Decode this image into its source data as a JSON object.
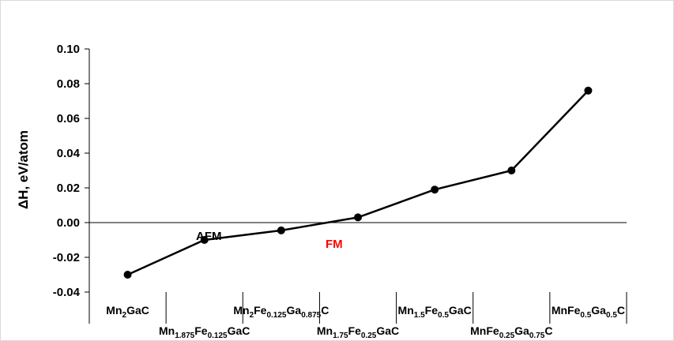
{
  "chart_data": {
    "type": "line",
    "ylabel": "ΔH, eV/atom",
    "ylim": [
      -0.04,
      0.1
    ],
    "yticks": [
      "0.10",
      "0.08",
      "0.06",
      "0.04",
      "0.02",
      "0.00",
      "-0.02",
      "-0.04"
    ],
    "grid": false,
    "categories": [
      {
        "parts": [
          [
            "Mn",
            ""
          ],
          [
            "2",
            "sub"
          ],
          [
            "GaC",
            ""
          ]
        ]
      },
      {
        "parts": [
          [
            "Mn",
            ""
          ],
          [
            "1.875",
            "sub"
          ],
          [
            "Fe",
            ""
          ],
          [
            "0.125",
            "sub"
          ],
          [
            "GaC",
            ""
          ]
        ]
      },
      {
        "parts": [
          [
            "Mn",
            ""
          ],
          [
            "2",
            "sub"
          ],
          [
            "Fe",
            ""
          ],
          [
            "0.125",
            "sub"
          ],
          [
            "Ga",
            ""
          ],
          [
            "0.875",
            "sub"
          ],
          [
            "C",
            ""
          ]
        ]
      },
      {
        "parts": [
          [
            "Mn",
            ""
          ],
          [
            "1.75",
            "sub"
          ],
          [
            "Fe",
            ""
          ],
          [
            "0.25",
            "sub"
          ],
          [
            "GaC",
            ""
          ]
        ]
      },
      {
        "parts": [
          [
            "Mn",
            ""
          ],
          [
            "1.5",
            "sub"
          ],
          [
            "Fe",
            ""
          ],
          [
            "0.5",
            "sub"
          ],
          [
            "GaC",
            ""
          ]
        ]
      },
      {
        "parts": [
          [
            "MnFe",
            ""
          ],
          [
            "0.25",
            "sub"
          ],
          [
            "Ga",
            ""
          ],
          [
            "0.75",
            "sub"
          ],
          [
            "C",
            ""
          ]
        ]
      },
      {
        "parts": [
          [
            "MnFe",
            ""
          ],
          [
            "0.5",
            "sub"
          ],
          [
            "Ga",
            ""
          ],
          [
            "0.5",
            "sub"
          ],
          [
            "C",
            ""
          ]
        ]
      }
    ],
    "series": [
      {
        "values": [
          -0.03,
          -0.01,
          -0.0045,
          0.003,
          0.019,
          0.03,
          0.076
        ],
        "color": "#000000"
      }
    ],
    "annotations": [
      {
        "text": "AFM",
        "color": "#000000"
      },
      {
        "text": "FM",
        "color": "#ff0000"
      }
    ]
  }
}
